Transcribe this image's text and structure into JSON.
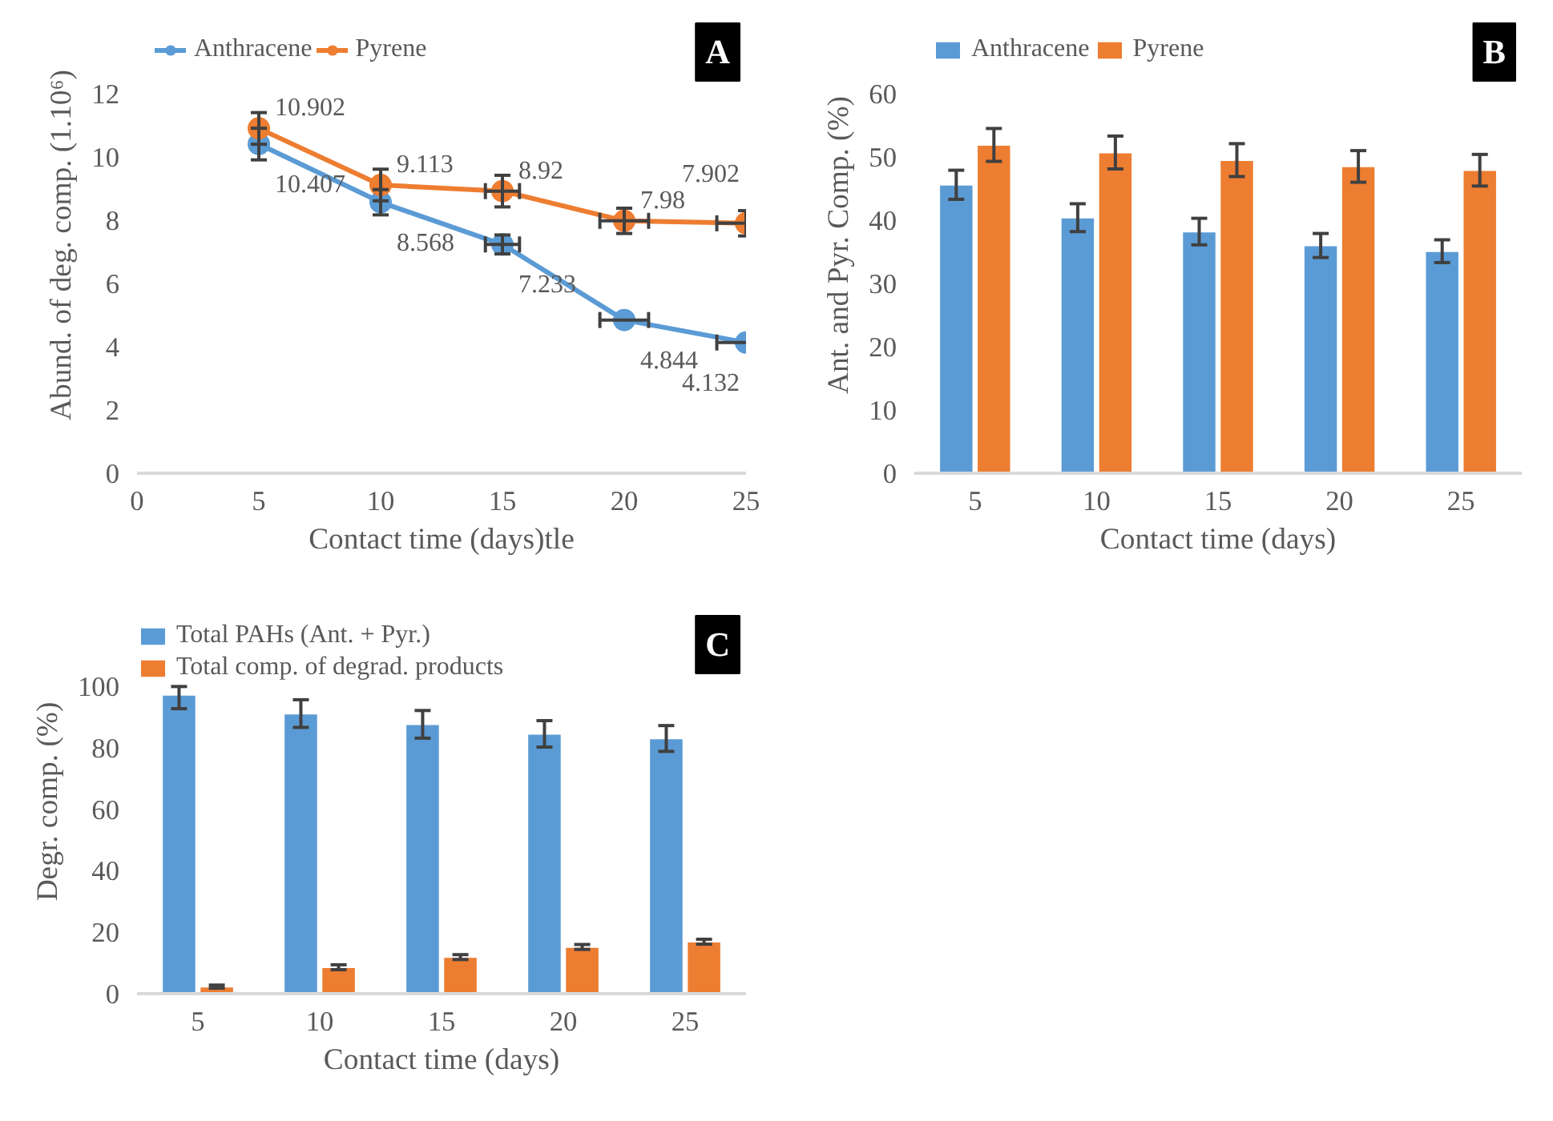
{
  "chart_data": [
    {
      "type": "line",
      "xlabel": "Contact time (days)tle",
      "ylabel": "Abund. of deg. comp. (1.10⁶)",
      "annotations": [
        "A"
      ],
      "x": [
        5,
        10,
        15,
        20,
        25
      ],
      "xlim": [
        0,
        25
      ],
      "xticks": [
        0,
        5,
        10,
        15,
        20,
        25
      ],
      "ylim": [
        0,
        12
      ],
      "yticks": [
        0,
        2,
        4,
        6,
        8,
        10,
        12
      ],
      "legend": "top",
      "marker": "circle",
      "data_labels": true,
      "series": [
        {
          "name": "Anthracene",
          "color": "#5b9bd5",
          "values": [
            10.407,
            8.568,
            7.233,
            4.844,
            4.132
          ],
          "errors": [
            0.5,
            0.4,
            0.3,
            null,
            null
          ],
          "xerrors": [
            null,
            null,
            0.7,
            1,
            1.2
          ]
        },
        {
          "name": "Pyrene",
          "color": "#ed7d31",
          "values": [
            10.902,
            9.113,
            8.92,
            7.98,
            7.902
          ],
          "errors": [
            0.5,
            0.5,
            0.5,
            0.4,
            0.4
          ],
          "xerrors": [
            null,
            null,
            0.7,
            1,
            1.2
          ]
        }
      ]
    },
    {
      "type": "bar",
      "xlabel": "Contact time (days)",
      "ylabel": "Ant. and Pyr. Comp. (%)",
      "annotations": [
        "B"
      ],
      "categories": [
        "5",
        "10",
        "15",
        "20",
        "25"
      ],
      "ylim": [
        0,
        60
      ],
      "yticks": [
        0,
        10,
        20,
        30,
        40,
        50,
        60
      ],
      "legend": "top",
      "series": [
        {
          "name": "Anthracene",
          "color": "#5b9bd5",
          "values": [
            45.6,
            40.4,
            38.2,
            36,
            35.1
          ],
          "errors": [
            2.3,
            2.2,
            2.1,
            1.9,
            1.8
          ]
        },
        {
          "name": "Pyrene",
          "color": "#ed7d31",
          "values": [
            51.9,
            50.7,
            49.5,
            48.5,
            47.9
          ],
          "errors": [
            2.6,
            2.6,
            2.6,
            2.5,
            2.5
          ]
        }
      ]
    },
    {
      "type": "bar",
      "xlabel": "Contact time (days)",
      "ylabel": "Degr. comp. (%)",
      "annotations": [
        "C"
      ],
      "categories": [
        "5",
        "10",
        "15",
        "20",
        "25"
      ],
      "ylim": [
        0,
        100
      ],
      "yticks": [
        0,
        20,
        40,
        60,
        80,
        100
      ],
      "legend": "top left",
      "series": [
        {
          "name": "Total PAHs (Ant. + Pyr.)",
          "color": "#5b9bd5",
          "values": [
            97.2,
            91.1,
            87.6,
            84.5,
            83
          ],
          "errors": [
            [
              92.7,
              99.9
            ],
            4.5,
            4.5,
            4.3,
            4.2
          ]
        },
        {
          "name": "Total comp. of degrad. products",
          "color": "#ed7d31",
          "values": [
            2.3,
            8.6,
            11.9,
            15.2,
            16.9
          ],
          "errors": [
            0.5,
            0.8,
            0.8,
            0.8,
            0.8
          ]
        }
      ]
    }
  ]
}
